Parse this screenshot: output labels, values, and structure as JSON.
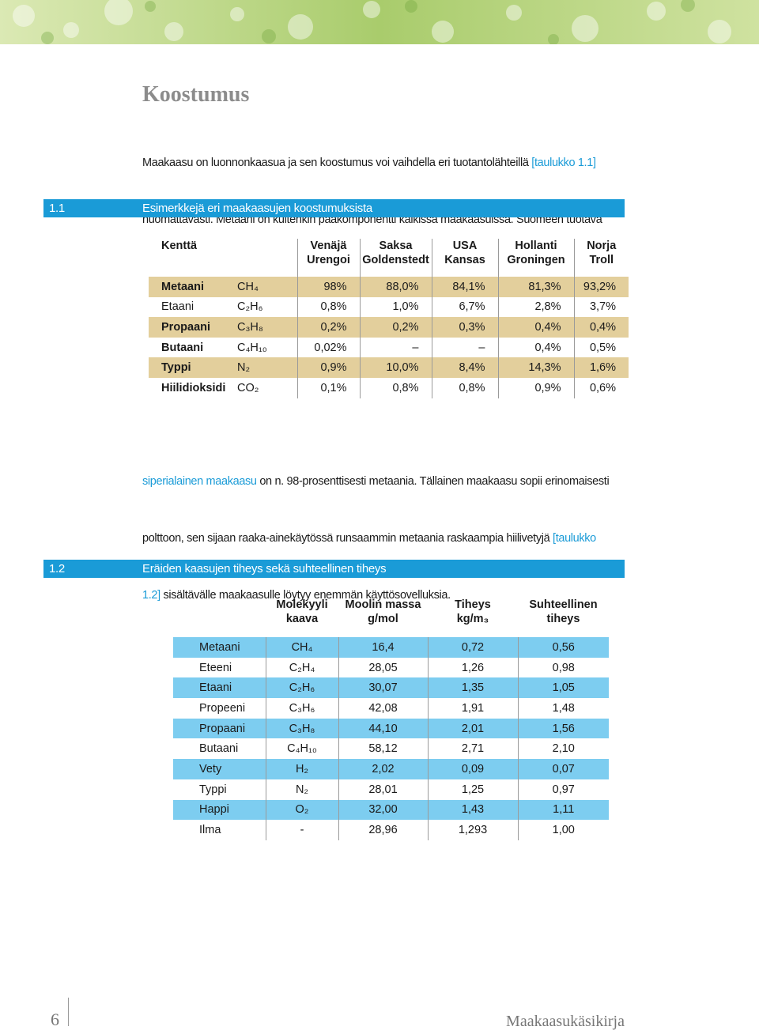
{
  "heading": "Koostumus",
  "intro": {
    "lines": [
      [
        "Maakaasu on luonnonkaasua ja sen koostumus voi vaihdella eri tuotantolähteillä ",
        "[taulukko 1.1]"
      ],
      [
        "huomattavasti. Metaani on kuitenkin pääkomponentti kaikissa maakaasuissa. Suomeen tuotava"
      ]
    ]
  },
  "table1": {
    "number": "1.1",
    "title": "Esimerkkejä eri maakaasujen koostumuksista",
    "field_header": "Kenttä",
    "columns": [
      [
        "Venäjä",
        "Urengoi"
      ],
      [
        "Saksa",
        "Goldenstedt"
      ],
      [
        "USA",
        "Kansas"
      ],
      [
        "Hollanti",
        "Groningen"
      ],
      [
        "Norja",
        "Troll"
      ]
    ],
    "rows": [
      {
        "name": "Metaani",
        "formula": "CH₄",
        "values": [
          "98%",
          "88,0%",
          "84,1%",
          "81,3%",
          "93,2%"
        ]
      },
      {
        "name": "Etaani",
        "formula": "C₂H₆",
        "values": [
          "0,8%",
          "1,0%",
          "6,7%",
          "2,8%",
          "3,7%"
        ]
      },
      {
        "name": "Propaani",
        "formula": "C₃H₈",
        "values": [
          "0,2%",
          "0,2%",
          "0,3%",
          "0,4%",
          "0,4%"
        ]
      },
      {
        "name": "Butaani",
        "formula": "C₄H₁₀",
        "values": [
          "0,02%",
          "–",
          "–",
          "0,4%",
          "0,5%"
        ]
      },
      {
        "name": "Typpi",
        "formula": "N₂",
        "values": [
          "0,9%",
          "10,0%",
          "8,4%",
          "14,3%",
          "1,6%"
        ]
      },
      {
        "name": "Hiilidioksidi",
        "formula": "CO₂",
        "values": [
          "0,1%",
          "0,8%",
          "0,8%",
          "0,9%",
          "0,6%"
        ]
      }
    ]
  },
  "body": {
    "lines": [
      [
        "siperialainen maakaasu",
        " on n. 98-prosenttisesti metaania. Tällainen maakaasu sopii erinomaisesti"
      ],
      [
        "polttoon, sen sijaan raaka-ainekäytössä runsaammin metaania raskaampia hiilivetyjä ",
        "[taulukko"
      ],
      [
        "1.2]",
        " sisältävälle maakaasulle löytyy enemmän käyttösovelluksia."
      ]
    ]
  },
  "table2": {
    "number": "1.2",
    "title": "Eräiden kaasujen tiheys sekä suhteellinen tiheys",
    "columns": [
      [
        "Molekyyli",
        "kaava"
      ],
      [
        "Moolin massa",
        "g/mol"
      ],
      [
        "Tiheys",
        "kg/m₃"
      ],
      [
        "Suhteellinen",
        "tiheys"
      ]
    ],
    "rows": [
      {
        "name": "Metaani",
        "formula": "CH₄",
        "values": [
          "16,4",
          "0,72",
          "0,56"
        ]
      },
      {
        "name": "Eteeni",
        "formula": "C₂H₄",
        "values": [
          "28,05",
          "1,26",
          "0,98"
        ]
      },
      {
        "name": "Etaani",
        "formula": "C₂H₆",
        "values": [
          "30,07",
          "1,35",
          "1,05"
        ]
      },
      {
        "name": "Propeeni",
        "formula": "C₃H₆",
        "values": [
          "42,08",
          "1,91",
          "1,48"
        ]
      },
      {
        "name": "Propaani",
        "formula": "C₃H₈",
        "values": [
          "44,10",
          "2,01",
          "1,56"
        ]
      },
      {
        "name": "Butaani",
        "formula": "C₄H₁₀",
        "values": [
          "58,12",
          "2,71",
          "2,10"
        ]
      },
      {
        "name": "Vety",
        "formula": "H₂",
        "values": [
          "2,02",
          "0,09",
          "0,07"
        ]
      },
      {
        "name": "Typpi",
        "formula": "N₂",
        "values": [
          "28,01",
          "1,25",
          "0,97"
        ]
      },
      {
        "name": "Happi",
        "formula": "O₂",
        "values": [
          "32,00",
          "1,43",
          "1,11"
        ]
      },
      {
        "name": "Ilma",
        "formula": "-",
        "values": [
          "28,96",
          "1,293",
          "1,00"
        ]
      }
    ]
  },
  "footer": {
    "page_number": "6",
    "title": "Maakaasukäsikirja"
  }
}
